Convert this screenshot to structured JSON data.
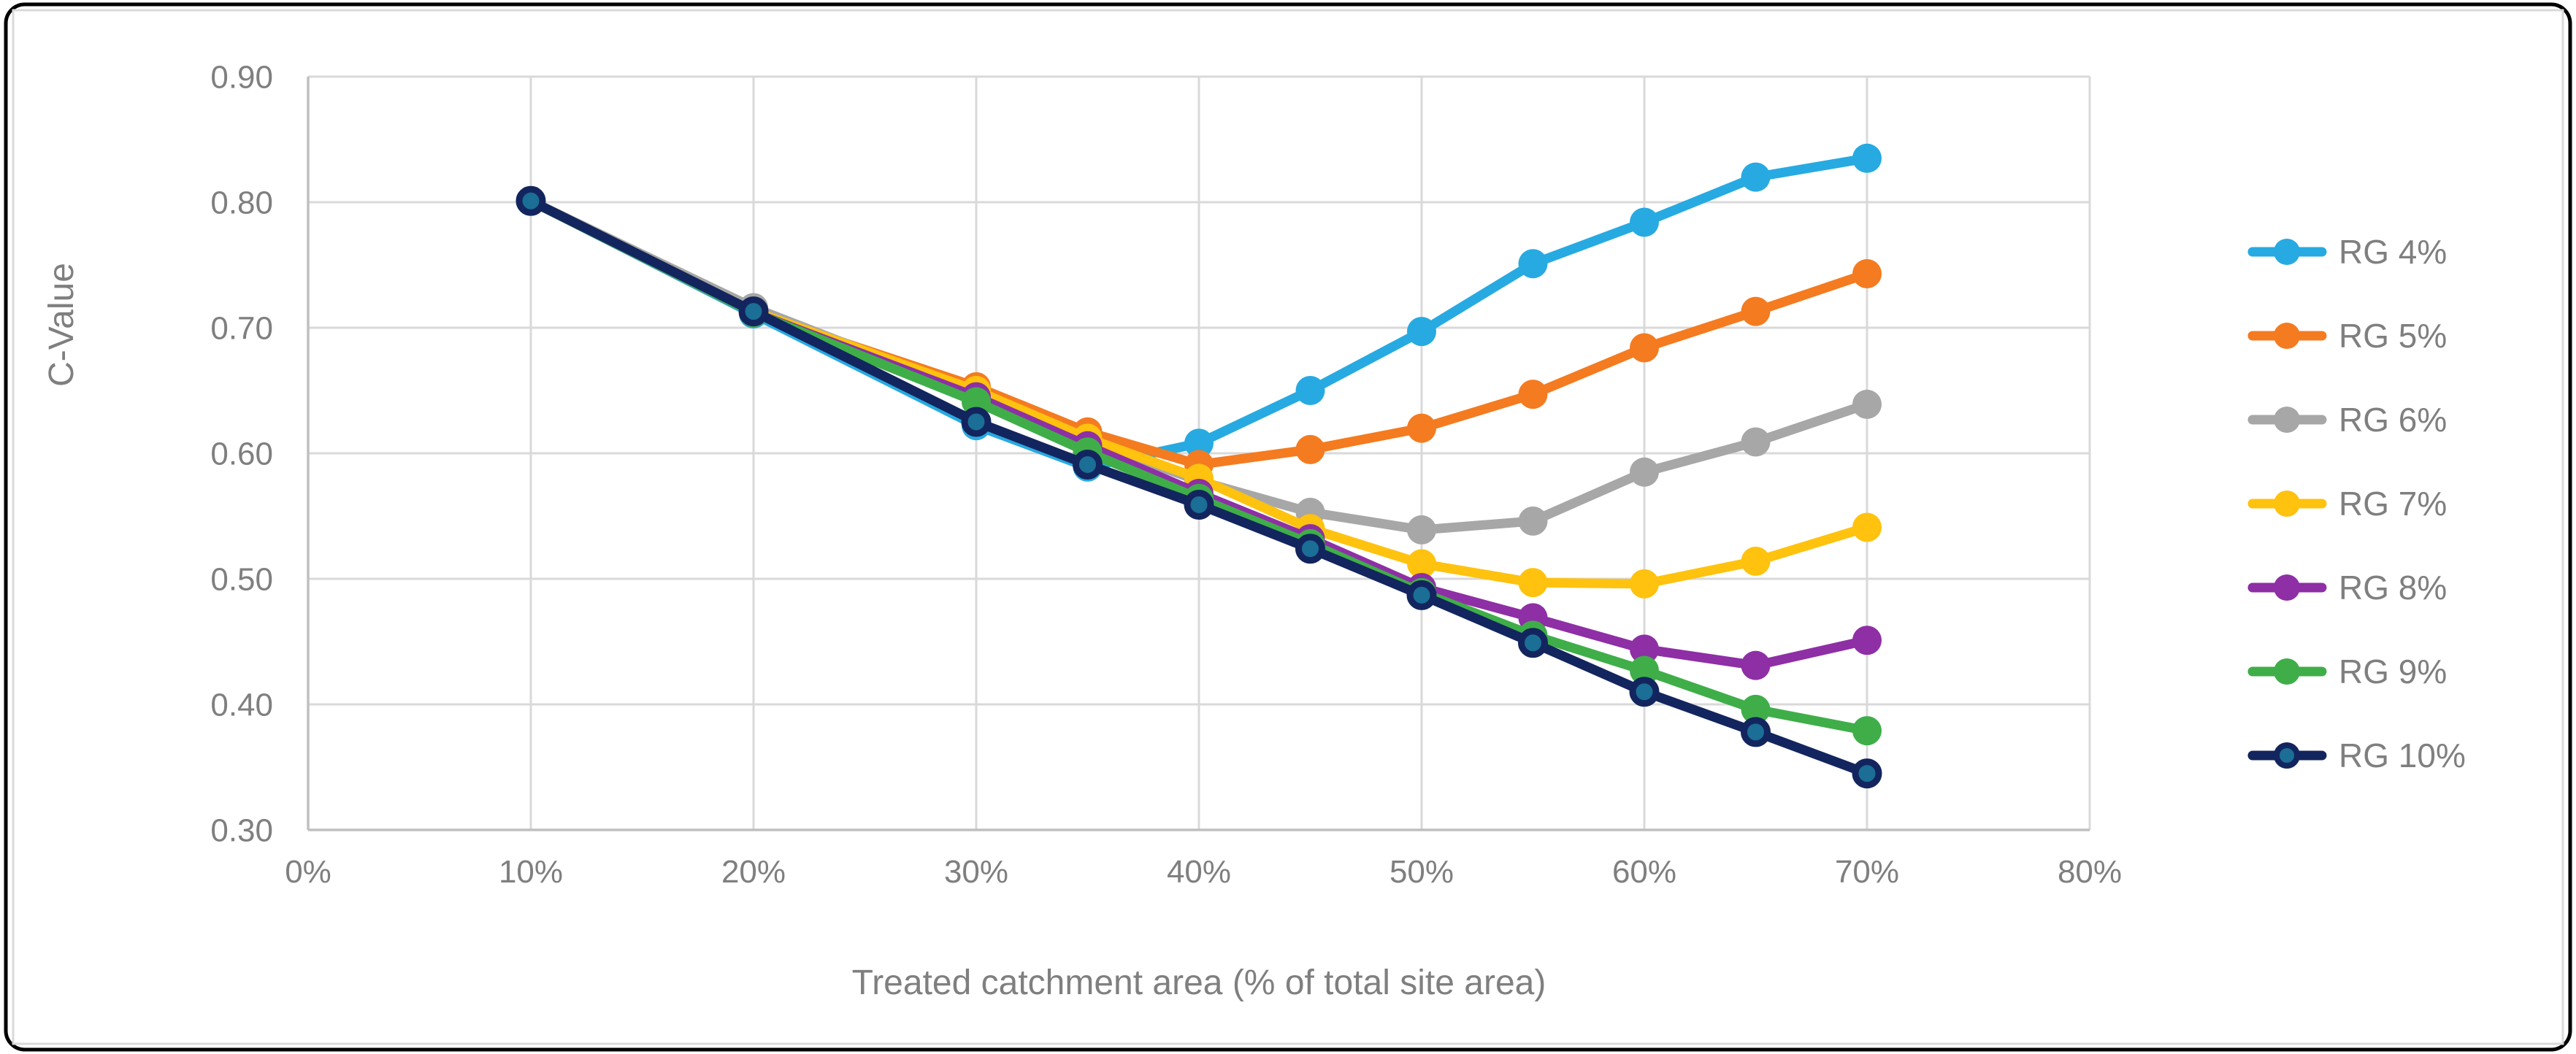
{
  "figure": {
    "frame_color": "#000000",
    "inner_border_color": "#D9D9D9",
    "background": "#FFFFFF"
  },
  "chart_data": {
    "type": "line",
    "title": "",
    "xlabel": "Treated catchment area (% of total site area)",
    "ylabel": "C-Value",
    "xlim": [
      0,
      80
    ],
    "ylim": [
      0.3,
      0.9
    ],
    "grid": true,
    "legend_position": "right",
    "x_ticks": [
      "0%",
      "10%",
      "20%",
      "30%",
      "40%",
      "50%",
      "60%",
      "70%",
      "80%"
    ],
    "x_tick_values": [
      0,
      10,
      20,
      30,
      40,
      50,
      60,
      70,
      80
    ],
    "y_ticks": [
      "0.30",
      "0.40",
      "0.50",
      "0.60",
      "0.70",
      "0.80",
      "0.90"
    ],
    "y_tick_values": [
      0.3,
      0.4,
      0.5,
      0.6,
      0.7,
      0.8,
      0.9
    ],
    "x": [
      10,
      20,
      30,
      35,
      40,
      45,
      50,
      55,
      60,
      65,
      70
    ],
    "series": [
      {
        "name": "RG 4%",
        "color": "#27AAE1",
        "marker_fill": "#27AAE1",
        "values": [
          0.801,
          0.711,
          0.622,
          0.589,
          0.608,
          0.65,
          0.697,
          0.751,
          0.784,
          0.82,
          0.835
        ]
      },
      {
        "name": "RG 5%",
        "color": "#F47B20",
        "marker_fill": "#F47B20",
        "values": [
          0.801,
          0.712,
          0.653,
          0.617,
          0.591,
          0.603,
          0.62,
          0.647,
          0.684,
          0.713,
          0.743
        ]
      },
      {
        "name": "RG 6%",
        "color": "#A7A7A7",
        "marker_fill": "#A7A7A7",
        "values": [
          0.801,
          0.716,
          0.647,
          0.61,
          0.578,
          0.553,
          0.539,
          0.546,
          0.585,
          0.609,
          0.639
        ]
      },
      {
        "name": "RG 7%",
        "color": "#FFC20E",
        "marker_fill": "#FFC20E",
        "values": [
          0.801,
          0.713,
          0.65,
          0.612,
          0.58,
          0.54,
          0.512,
          0.497,
          0.496,
          0.514,
          0.541
        ]
      },
      {
        "name": "RG 8%",
        "color": "#8E2FA5",
        "marker_fill": "#8E2FA5",
        "values": [
          0.801,
          0.712,
          0.645,
          0.606,
          0.568,
          0.532,
          0.493,
          0.469,
          0.444,
          0.431,
          0.451
        ]
      },
      {
        "name": "RG 9%",
        "color": "#3FAE49",
        "marker_fill": "#3FAE49",
        "values": [
          0.801,
          0.712,
          0.641,
          0.601,
          0.564,
          0.528,
          0.489,
          0.455,
          0.427,
          0.396,
          0.379
        ]
      },
      {
        "name": "RG 10%",
        "color": "#13255E",
        "marker_fill": "#1B6E96",
        "marker_stroke": "#13255E",
        "values": [
          0.801,
          0.713,
          0.625,
          0.591,
          0.559,
          0.524,
          0.487,
          0.449,
          0.41,
          0.378,
          0.345
        ]
      }
    ],
    "styles": {
      "grid_color": "#D9D9D9",
      "axis_color": "#BFBFBF",
      "text_color": "#7F7F7F",
      "line_width": 13,
      "marker_radius": 20,
      "tick_font_size": 44,
      "axis_title_font_size": 48,
      "legend_font_size": 46
    }
  }
}
